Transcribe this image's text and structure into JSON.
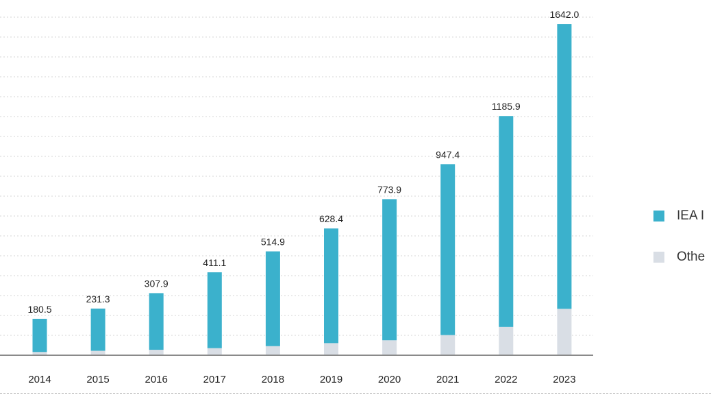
{
  "chart_data": {
    "type": "bar",
    "stacked": true,
    "categories": [
      "2014",
      "2015",
      "2016",
      "2017",
      "2018",
      "2019",
      "2020",
      "2021",
      "2022",
      "2023"
    ],
    "series": [
      {
        "name": "IEA I",
        "color": "#3bb1cc",
        "values": [
          164.5,
          209.3,
          280.9,
          376.1,
          469.9,
          568.4,
          699.9,
          847.4,
          1045.9,
          1412.0
        ]
      },
      {
        "name": "Othe",
        "color": "#d9dee5",
        "values": [
          16,
          22,
          27,
          35,
          45,
          60,
          74,
          100,
          140,
          230
        ]
      }
    ],
    "totals": [
      "180.5",
      "231.3",
      "307.9",
      "411.1",
      "514.9",
      "628.4",
      "773.9",
      "947.4",
      "1185.9",
      "1642.0"
    ],
    "ylim": [
      0,
      1700
    ],
    "grid": true,
    "legend_position": "right"
  }
}
